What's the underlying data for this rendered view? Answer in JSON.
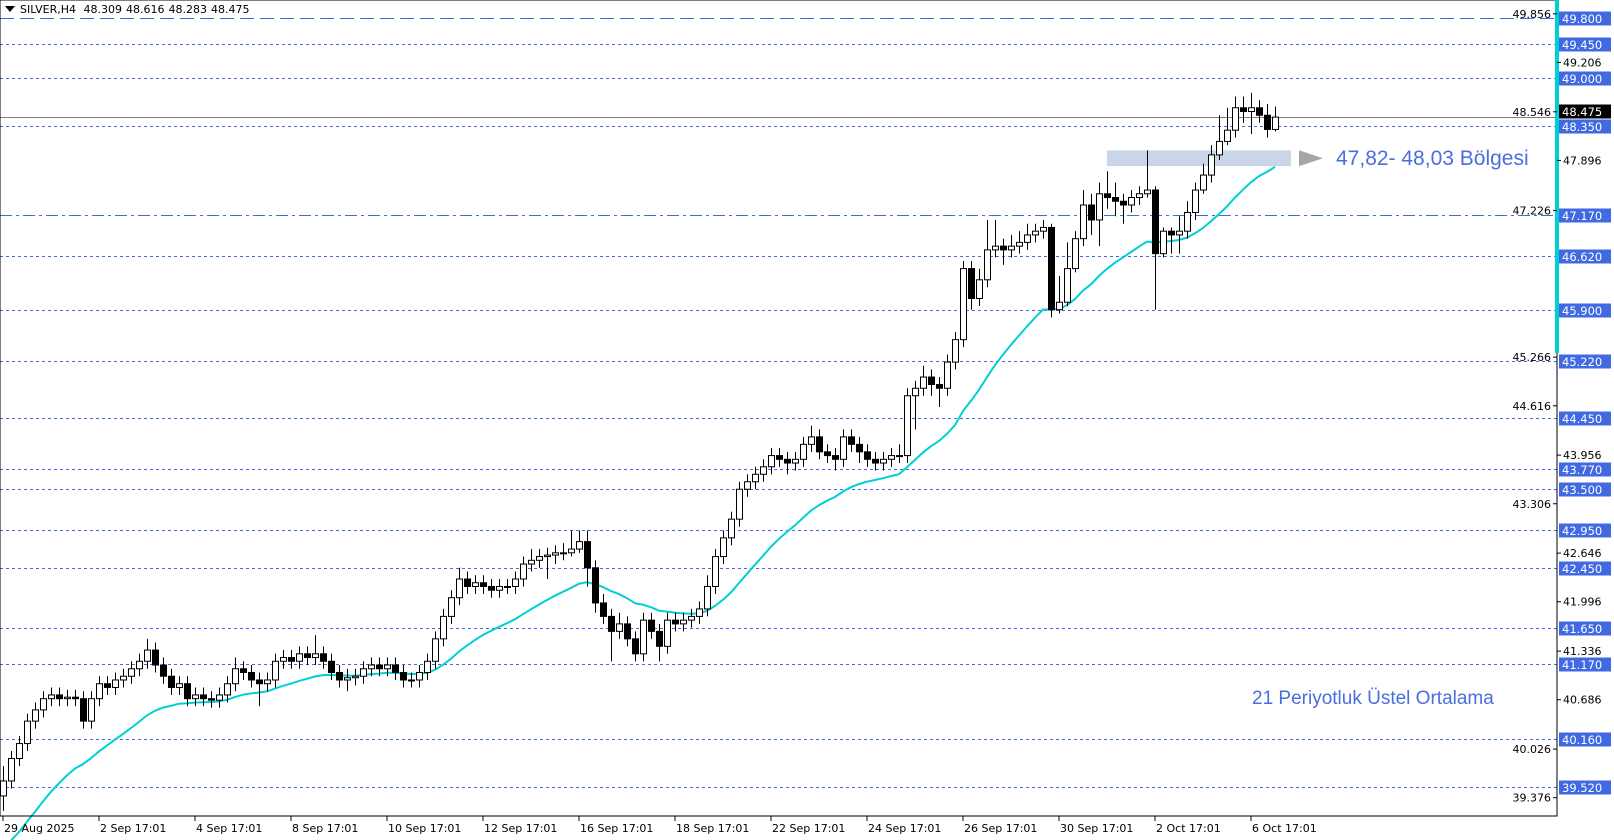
{
  "header": {
    "symbol": "SILVER,H4",
    "open": "48.309",
    "high": "48.616",
    "low": "48.283",
    "close": "48.475"
  },
  "annotations": {
    "zone_label": "47,82- 48,03 Bölgesi",
    "ema_label": "21 Periyotluk Üstel Ortalama"
  },
  "colors": {
    "level_line": "#4169e1",
    "level_label_bg": "#4169e1",
    "ema": "#00cfd6",
    "zone_fill": "#c9d6ea",
    "arrow": "#a6a6a6",
    "bid_line": "#808080",
    "bid_label_bg": "#000000"
  },
  "chart_data": {
    "type": "candlestick",
    "title": "SILVER,H4",
    "timeframe": "H4",
    "ylim": [
      39.2,
      50.04
    ],
    "grid": false,
    "indicator": {
      "type": "EMA",
      "period": 21
    },
    "bid": "48.475",
    "zone": {
      "low": 47.82,
      "high": 48.03
    },
    "levels": [
      {
        "value": "49.800",
        "style": "long-dash"
      },
      {
        "value": "49.450",
        "style": "dotted"
      },
      {
        "value": "49.000",
        "style": "dotted"
      },
      {
        "value": "48.350",
        "style": "dotted"
      },
      {
        "value": "47.170",
        "style": "dash-dot"
      },
      {
        "value": "46.620",
        "style": "dotted"
      },
      {
        "value": "45.900",
        "style": "dotted"
      },
      {
        "value": "45.220",
        "style": "dotted"
      },
      {
        "value": "44.450",
        "style": "dotted"
      },
      {
        "value": "43.770",
        "style": "dotted"
      },
      {
        "value": "43.500",
        "style": "dotted"
      },
      {
        "value": "42.950",
        "style": "dotted"
      },
      {
        "value": "42.450",
        "style": "dotted"
      },
      {
        "value": "41.650",
        "style": "dotted"
      },
      {
        "value": "41.170",
        "style": "dotted"
      },
      {
        "value": "40.160",
        "style": "dotted"
      },
      {
        "value": "39.520",
        "style": "dotted"
      }
    ],
    "y_ticks": [
      "49.856",
      "49.206",
      "48.546",
      "47.896",
      "47.226",
      "45.266",
      "44.616",
      "43.956",
      "43.306",
      "42.646",
      "41.996",
      "41.336",
      "40.686",
      "40.026",
      "39.376"
    ],
    "x_ticks": [
      {
        "bar": 0,
        "label": "29 Aug 2025"
      },
      {
        "bar": 12,
        "label": "2 Sep 17:01"
      },
      {
        "bar": 24,
        "label": "4 Sep 17:01"
      },
      {
        "bar": 36,
        "label": "8 Sep 17:01"
      },
      {
        "bar": 48,
        "label": "10 Sep 17:01"
      },
      {
        "bar": 60,
        "label": "12 Sep 17:01"
      },
      {
        "bar": 72,
        "label": "16 Sep 17:01"
      },
      {
        "bar": 84,
        "label": "18 Sep 17:01"
      },
      {
        "bar": 96,
        "label": "22 Sep 17:01"
      },
      {
        "bar": 108,
        "label": "24 Sep 17:01"
      },
      {
        "bar": 120,
        "label": "26 Sep 17:01"
      },
      {
        "bar": 132,
        "label": "30 Sep 17:01"
      },
      {
        "bar": 144,
        "label": "2 Oct 17:01"
      },
      {
        "bar": 156,
        "label": "6 Oct 17:01"
      }
    ],
    "ohlc": [
      [
        39.4,
        39.8,
        39.2,
        39.6
      ],
      [
        39.6,
        40.0,
        39.5,
        39.9
      ],
      [
        39.9,
        40.2,
        39.8,
        40.1
      ],
      [
        40.1,
        40.5,
        40.0,
        40.4
      ],
      [
        40.4,
        40.65,
        40.3,
        40.55
      ],
      [
        40.55,
        40.8,
        40.45,
        40.7
      ],
      [
        40.7,
        40.85,
        40.6,
        40.75
      ],
      [
        40.75,
        40.85,
        40.6,
        40.7
      ],
      [
        40.7,
        40.82,
        40.6,
        40.72
      ],
      [
        40.72,
        40.82,
        40.6,
        40.7
      ],
      [
        40.7,
        40.8,
        40.3,
        40.4
      ],
      [
        40.4,
        40.8,
        40.3,
        40.7
      ],
      [
        40.7,
        41.0,
        40.6,
        40.9
      ],
      [
        40.9,
        41.0,
        40.75,
        40.85
      ],
      [
        40.85,
        41.05,
        40.75,
        40.95
      ],
      [
        40.95,
        41.1,
        40.85,
        41.0
      ],
      [
        41.0,
        41.2,
        40.9,
        41.1
      ],
      [
        41.1,
        41.3,
        41.0,
        41.2
      ],
      [
        41.2,
        41.5,
        41.1,
        41.35
      ],
      [
        41.35,
        41.45,
        41.05,
        41.15
      ],
      [
        41.15,
        41.25,
        40.9,
        41.0
      ],
      [
        41.0,
        41.1,
        40.75,
        40.85
      ],
      [
        40.85,
        41.0,
        40.75,
        40.9
      ],
      [
        40.9,
        41.0,
        40.6,
        40.7
      ],
      [
        40.7,
        40.85,
        40.6,
        40.75
      ],
      [
        40.75,
        40.85,
        40.6,
        40.7
      ],
      [
        40.7,
        40.8,
        40.58,
        40.68
      ],
      [
        40.68,
        40.85,
        40.58,
        40.75
      ],
      [
        40.75,
        41.0,
        40.65,
        40.9
      ],
      [
        40.9,
        41.25,
        40.8,
        41.1
      ],
      [
        41.1,
        41.2,
        40.95,
        41.05
      ],
      [
        41.05,
        41.15,
        40.85,
        40.95
      ],
      [
        40.95,
        41.05,
        40.6,
        40.9
      ],
      [
        40.9,
        41.05,
        40.8,
        40.95
      ],
      [
        40.95,
        41.3,
        40.85,
        41.2
      ],
      [
        41.2,
        41.35,
        41.1,
        41.25
      ],
      [
        41.25,
        41.35,
        41.1,
        41.2
      ],
      [
        41.2,
        41.4,
        41.1,
        41.3
      ],
      [
        41.3,
        41.4,
        41.15,
        41.25
      ],
      [
        41.25,
        41.55,
        41.15,
        41.3
      ],
      [
        41.3,
        41.4,
        41.1,
        41.2
      ],
      [
        41.2,
        41.3,
        40.95,
        41.05
      ],
      [
        41.05,
        41.15,
        40.85,
        40.95
      ],
      [
        40.95,
        41.1,
        40.8,
        40.98
      ],
      [
        40.98,
        41.1,
        40.88,
        41.0
      ],
      [
        41.0,
        41.2,
        40.9,
        41.1
      ],
      [
        41.1,
        41.25,
        41.0,
        41.15
      ],
      [
        41.15,
        41.25,
        41.0,
        41.1
      ],
      [
        41.1,
        41.25,
        41.0,
        41.15
      ],
      [
        41.15,
        41.25,
        40.95,
        41.05
      ],
      [
        41.05,
        41.15,
        40.85,
        40.95
      ],
      [
        40.95,
        41.05,
        40.85,
        40.95
      ],
      [
        40.95,
        41.15,
        40.85,
        41.05
      ],
      [
        41.05,
        41.3,
        40.95,
        41.2
      ],
      [
        41.2,
        41.6,
        41.1,
        41.5
      ],
      [
        41.5,
        41.9,
        41.4,
        41.8
      ],
      [
        41.8,
        42.15,
        41.7,
        42.05
      ],
      [
        42.05,
        42.45,
        41.95,
        42.3
      ],
      [
        42.3,
        42.4,
        42.1,
        42.2
      ],
      [
        42.2,
        42.35,
        42.1,
        42.25
      ],
      [
        42.25,
        42.35,
        42.1,
        42.2
      ],
      [
        42.2,
        42.3,
        42.05,
        42.15
      ],
      [
        42.15,
        42.3,
        42.05,
        42.2
      ],
      [
        42.2,
        42.3,
        42.1,
        42.2
      ],
      [
        42.2,
        42.4,
        42.1,
        42.3
      ],
      [
        42.3,
        42.6,
        42.2,
        42.5
      ],
      [
        42.5,
        42.7,
        42.4,
        42.55
      ],
      [
        42.55,
        42.7,
        42.45,
        42.6
      ],
      [
        42.6,
        42.72,
        42.3,
        42.62
      ],
      [
        42.62,
        42.75,
        42.5,
        42.65
      ],
      [
        42.65,
        42.78,
        42.55,
        42.65
      ],
      [
        42.65,
        42.95,
        42.6,
        42.7
      ],
      [
        42.7,
        42.95,
        42.65,
        42.8
      ],
      [
        42.8,
        42.95,
        42.2,
        42.45
      ],
      [
        42.45,
        42.55,
        41.85,
        41.98
      ],
      [
        41.98,
        42.1,
        41.7,
        41.8
      ],
      [
        41.8,
        41.9,
        41.2,
        41.6
      ],
      [
        41.6,
        41.85,
        41.5,
        41.7
      ],
      [
        41.7,
        41.8,
        41.4,
        41.5
      ],
      [
        41.5,
        41.6,
        41.2,
        41.3
      ],
      [
        41.3,
        41.85,
        41.2,
        41.75
      ],
      [
        41.75,
        41.85,
        41.5,
        41.6
      ],
      [
        41.6,
        41.7,
        41.2,
        41.4
      ],
      [
        41.4,
        41.85,
        41.3,
        41.75
      ],
      [
        41.75,
        41.85,
        41.6,
        41.7
      ],
      [
        41.7,
        41.85,
        41.6,
        41.75
      ],
      [
        41.75,
        41.9,
        41.65,
        41.8
      ],
      [
        41.8,
        42.0,
        41.7,
        41.9
      ],
      [
        41.9,
        42.35,
        41.8,
        42.2
      ],
      [
        42.2,
        42.7,
        42.1,
        42.6
      ],
      [
        42.6,
        42.95,
        42.5,
        42.85
      ],
      [
        42.85,
        43.2,
        42.75,
        43.1
      ],
      [
        43.1,
        43.6,
        43.0,
        43.5
      ],
      [
        43.5,
        43.7,
        43.4,
        43.6
      ],
      [
        43.6,
        43.8,
        43.5,
        43.7
      ],
      [
        43.7,
        43.9,
        43.6,
        43.8
      ],
      [
        43.8,
        44.05,
        43.7,
        43.95
      ],
      [
        43.95,
        44.05,
        43.8,
        43.9
      ],
      [
        43.9,
        44.0,
        43.7,
        43.85
      ],
      [
        43.85,
        44.0,
        43.75,
        43.9
      ],
      [
        43.9,
        44.2,
        43.8,
        44.1
      ],
      [
        44.1,
        44.35,
        44.0,
        44.2
      ],
      [
        44.2,
        44.3,
        43.9,
        44.0
      ],
      [
        44.0,
        44.1,
        43.85,
        43.95
      ],
      [
        43.95,
        44.05,
        43.75,
        43.9
      ],
      [
        43.9,
        44.3,
        43.8,
        44.2
      ],
      [
        44.2,
        44.3,
        44.0,
        44.1
      ],
      [
        44.1,
        44.2,
        43.85,
        44.0
      ],
      [
        44.0,
        44.1,
        43.8,
        43.9
      ],
      [
        43.9,
        44.0,
        43.75,
        43.85
      ],
      [
        43.85,
        44.0,
        43.75,
        43.9
      ],
      [
        43.9,
        44.05,
        43.8,
        43.95
      ],
      [
        43.95,
        44.1,
        43.85,
        43.95
      ],
      [
        43.95,
        44.85,
        43.85,
        44.75
      ],
      [
        44.75,
        44.95,
        44.3,
        44.85
      ],
      [
        44.85,
        45.15,
        44.75,
        45.0
      ],
      [
        45.0,
        45.1,
        44.75,
        44.9
      ],
      [
        44.9,
        45.0,
        44.6,
        44.85
      ],
      [
        44.85,
        45.3,
        44.75,
        45.2
      ],
      [
        45.2,
        45.6,
        45.1,
        45.5
      ],
      [
        45.5,
        46.55,
        45.4,
        46.45
      ],
      [
        46.45,
        46.55,
        45.9,
        46.05
      ],
      [
        46.05,
        46.45,
        45.95,
        46.3
      ],
      [
        46.3,
        47.1,
        46.2,
        46.7
      ],
      [
        46.7,
        47.1,
        46.6,
        46.75
      ],
      [
        46.75,
        46.85,
        46.5,
        46.7
      ],
      [
        46.7,
        46.9,
        46.6,
        46.75
      ],
      [
        46.75,
        46.95,
        46.65,
        46.8
      ],
      [
        46.8,
        47.05,
        46.7,
        46.9
      ],
      [
        46.9,
        47.05,
        46.8,
        46.95
      ],
      [
        46.95,
        47.1,
        46.85,
        47.0
      ],
      [
        47.0,
        47.05,
        45.8,
        45.9
      ],
      [
        45.9,
        46.35,
        45.85,
        46.0
      ],
      [
        46.0,
        46.8,
        45.95,
        46.45
      ],
      [
        46.45,
        46.95,
        46.4,
        46.85
      ],
      [
        46.85,
        47.5,
        46.75,
        47.3
      ],
      [
        47.3,
        47.45,
        46.9,
        47.1
      ],
      [
        47.1,
        47.6,
        46.75,
        47.45
      ],
      [
        47.45,
        47.75,
        47.25,
        47.4
      ],
      [
        47.4,
        47.6,
        47.15,
        47.35
      ],
      [
        47.35,
        47.45,
        47.05,
        47.3
      ],
      [
        47.3,
        47.5,
        47.2,
        47.4
      ],
      [
        47.4,
        47.55,
        47.3,
        47.45
      ],
      [
        47.45,
        48.03,
        47.4,
        47.5
      ],
      [
        47.5,
        47.55,
        45.9,
        46.65
      ],
      [
        46.65,
        47.0,
        46.6,
        46.95
      ],
      [
        46.95,
        47.0,
        46.65,
        46.9
      ],
      [
        46.9,
        47.15,
        46.65,
        46.95
      ],
      [
        46.95,
        47.35,
        46.85,
        47.2
      ],
      [
        47.2,
        47.6,
        47.1,
        47.5
      ],
      [
        47.5,
        47.85,
        47.45,
        47.7
      ],
      [
        47.7,
        48.1,
        47.6,
        47.97
      ],
      [
        47.97,
        48.5,
        47.9,
        48.15
      ],
      [
        48.15,
        48.6,
        48.1,
        48.3
      ],
      [
        48.3,
        48.75,
        48.2,
        48.6
      ],
      [
        48.6,
        48.75,
        48.4,
        48.55
      ],
      [
        48.55,
        48.8,
        48.25,
        48.6
      ],
      [
        48.6,
        48.7,
        48.4,
        48.5
      ],
      [
        48.5,
        48.65,
        48.2,
        48.31
      ],
      [
        48.309,
        48.616,
        48.283,
        48.475
      ]
    ]
  }
}
